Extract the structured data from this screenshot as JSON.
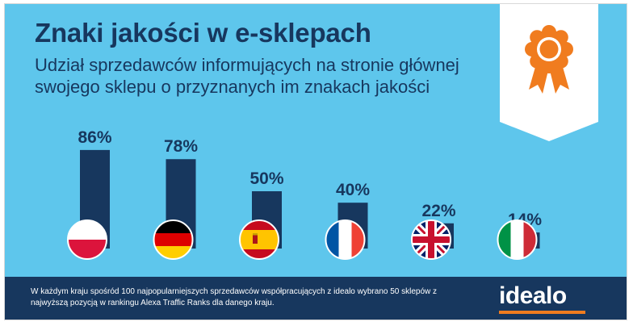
{
  "header": {
    "title": "Znaki jakości w e-sklepach",
    "subtitle": "Udział sprzedawców informujących na stronie głównej swojego sklepu o przyznanych im znakach jakości"
  },
  "chart_data": {
    "type": "bar",
    "title": "Znaki jakości w e-sklepach",
    "subtitle": "Udział sprzedawców informujących na stronie głównej swojego sklepu o przyznanych im znakach jakości",
    "categories": [
      "Polska",
      "Niemcy",
      "Hiszpania",
      "Francja",
      "Wielka Brytania",
      "Włochy"
    ],
    "values": [
      86,
      78,
      50,
      40,
      22,
      14
    ],
    "value_labels": [
      "86%",
      "78%",
      "50%",
      "40%",
      "22%",
      "14%"
    ],
    "unit": "%",
    "ylim": [
      0,
      100
    ],
    "grid": false,
    "legend": "none",
    "bar_color": "#17375e",
    "flags": [
      "flag-poland",
      "flag-germany",
      "flag-spain",
      "flag-france",
      "flag-uk",
      "flag-italy"
    ]
  },
  "footer": {
    "note": "W każdym kraju spośród 100 najpopularniejszych sprzedawców współpracujących z idealo wybrano 50 sklepów z najwyższą pozycją w rankingu Alexa Traffic Ranks dla danego kraju.",
    "logo": "idealo"
  },
  "colors": {
    "background": "#5ec6ec",
    "navy": "#17375e",
    "orange": "#f07c1f",
    "white": "#ffffff"
  },
  "icons": {
    "badge": "award-ribbon-icon"
  }
}
